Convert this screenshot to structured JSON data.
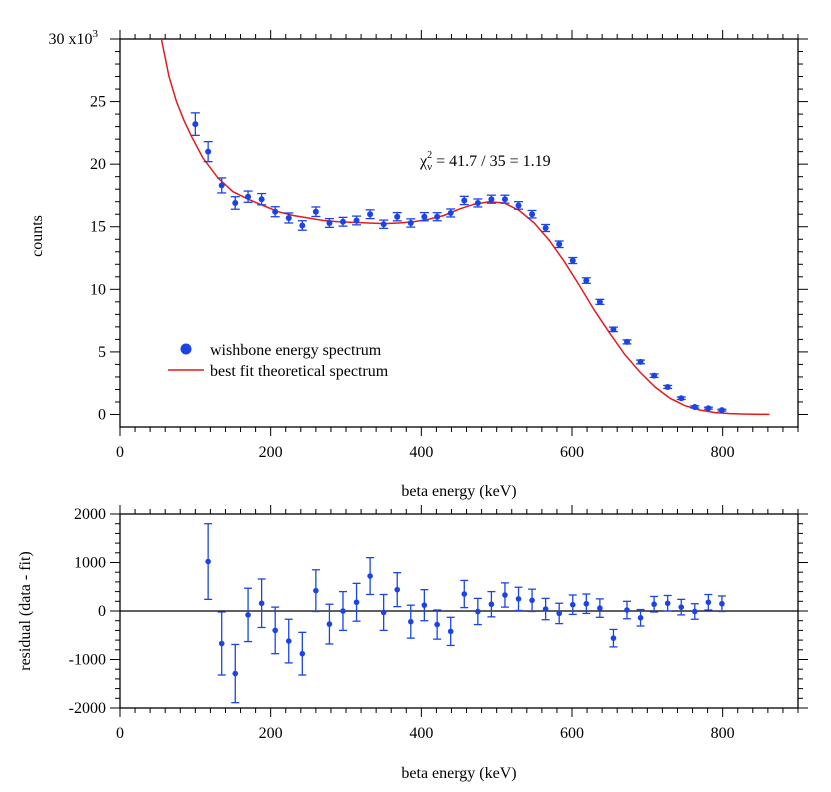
{
  "colors": {
    "data": "#1a44e8",
    "fit": "#e41a1c",
    "axis": "#000000",
    "background": "#ffffff"
  },
  "annotation": {
    "chi_symbol": "χ",
    "chi_sub": "ν",
    "chi_sup": "2",
    "chi_value": " = 41.7 / 35 = 1.19"
  },
  "legend": {
    "data_label": "wishbone energy spectrum",
    "fit_label": "best fit theoretical spectrum",
    "placement": "lower-left"
  },
  "chart_data": [
    {
      "id": "spectrum",
      "type": "scatter",
      "title": "",
      "xlabel": "beta energy (keV)",
      "ylabel": "counts",
      "xlim": [
        0,
        900
      ],
      "ylim": [
        -1000,
        30000
      ],
      "y_multiplier_label": "x10",
      "y_multiplier_exp": "3",
      "x_ticks": [
        0,
        200,
        400,
        600,
        800
      ],
      "x_tick_labels": [
        "0",
        "200",
        "400",
        "600",
        "800"
      ],
      "y_ticks": [
        0,
        5000,
        10000,
        15000,
        20000,
        25000,
        30000
      ],
      "y_tick_labels": [
        "0",
        "5",
        "10",
        "15",
        "20",
        "25",
        "30"
      ],
      "series": [
        {
          "name": "wishbone energy spectrum",
          "kind": "points_with_errorbars",
          "x": [
            100,
            117,
            135,
            153,
            170,
            188,
            206,
            224,
            242,
            260,
            278,
            296,
            314,
            332,
            350,
            368,
            386,
            404,
            421,
            439,
            457,
            475,
            493,
            511,
            529,
            547,
            565,
            583,
            601,
            619,
            637,
            655,
            673,
            691,
            709,
            727,
            745,
            763,
            781,
            799
          ],
          "y": [
            23200,
            21000,
            18300,
            16900,
            17400,
            17200,
            16200,
            15700,
            15100,
            16200,
            15300,
            15400,
            15500,
            16000,
            15200,
            15800,
            15300,
            15800,
            15800,
            16100,
            17100,
            16900,
            17200,
            17200,
            16700,
            16000,
            14900,
            13600,
            12300,
            10700,
            9000,
            6800,
            5800,
            4200,
            3100,
            2200,
            1300,
            600,
            500,
            350
          ],
          "yerr": [
            900,
            800,
            600,
            500,
            450,
            450,
            400,
            400,
            380,
            380,
            350,
            350,
            350,
            350,
            330,
            330,
            330,
            330,
            320,
            320,
            330,
            320,
            320,
            320,
            300,
            300,
            280,
            260,
            240,
            220,
            200,
            180,
            160,
            150,
            140,
            120,
            100,
            90,
            80,
            70
          ]
        },
        {
          "name": "best fit theoretical spectrum",
          "kind": "line",
          "x": [
            55,
            65,
            75,
            85,
            95,
            110,
            130,
            150,
            170,
            190,
            210,
            230,
            250,
            270,
            290,
            310,
            330,
            350,
            370,
            390,
            410,
            430,
            450,
            470,
            490,
            510,
            530,
            550,
            570,
            590,
            610,
            630,
            650,
            670,
            690,
            710,
            730,
            750,
            770,
            790,
            810,
            830,
            862
          ],
          "y": [
            30000,
            27000,
            25000,
            23500,
            22200,
            20500,
            18900,
            17800,
            17200,
            16700,
            16200,
            15900,
            15700,
            15500,
            15400,
            15350,
            15300,
            15250,
            15300,
            15400,
            15600,
            15900,
            16400,
            16800,
            17000,
            16900,
            16300,
            15300,
            13900,
            12200,
            10300,
            8300,
            6500,
            4800,
            3400,
            2200,
            1300,
            700,
            350,
            150,
            70,
            30,
            10
          ]
        }
      ]
    },
    {
      "id": "residuals",
      "type": "scatter",
      "title": "",
      "xlabel": "beta energy (keV)",
      "ylabel": "residual (data - fit)",
      "xlim": [
        0,
        900
      ],
      "ylim": [
        -2000,
        2000
      ],
      "x_ticks": [
        0,
        200,
        400,
        600,
        800
      ],
      "x_tick_labels": [
        "0",
        "200",
        "400",
        "600",
        "800"
      ],
      "y_ticks": [
        -2000,
        -1000,
        0,
        1000,
        2000
      ],
      "y_tick_labels": [
        "-2000",
        "-1000",
        "0",
        "1000",
        "2000"
      ],
      "reference_line": 0,
      "series": [
        {
          "name": "residual",
          "kind": "points_with_errorbars",
          "x": [
            117,
            135,
            153,
            170,
            188,
            206,
            224,
            242,
            260,
            278,
            296,
            314,
            332,
            350,
            368,
            386,
            404,
            421,
            439,
            457,
            475,
            493,
            511,
            529,
            547,
            565,
            583,
            601,
            619,
            637,
            655,
            673,
            691,
            709,
            727,
            745,
            763,
            781,
            799
          ],
          "y": [
            1020,
            -670,
            -1290,
            -80,
            160,
            -400,
            -620,
            -880,
            420,
            -270,
            0,
            180,
            720,
            -30,
            440,
            -220,
            120,
            -280,
            -420,
            350,
            -10,
            140,
            330,
            250,
            220,
            40,
            -50,
            130,
            150,
            60,
            -560,
            20,
            -140,
            140,
            160,
            80,
            -10,
            180,
            150
          ],
          "yerr": [
            780,
            650,
            600,
            550,
            500,
            480,
            450,
            440,
            430,
            410,
            400,
            390,
            380,
            370,
            350,
            340,
            320,
            300,
            290,
            280,
            270,
            260,
            250,
            240,
            230,
            220,
            210,
            200,
            200,
            190,
            180,
            180,
            170,
            160,
            160,
            160,
            160,
            160,
            160
          ]
        }
      ]
    }
  ]
}
